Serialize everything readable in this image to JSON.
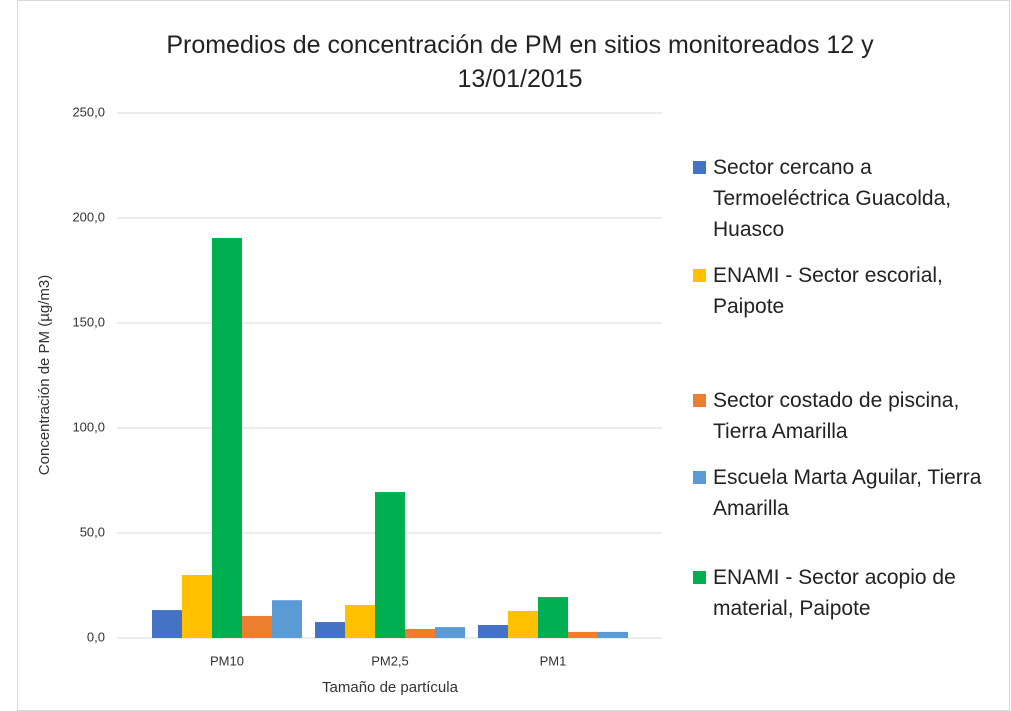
{
  "chart_data": {
    "type": "bar",
    "title": "Promedios de concentración de PM en sitios monitoreados 12 y 13/01/2015",
    "x_label": "Tamaño de partícula",
    "y_label": "Concentración de PM (µg/m3)",
    "categories": [
      "PM10",
      "PM2,5",
      "PM1"
    ],
    "series": [
      {
        "name": "Sector cercano a Termoeléctrica Guacolda, Huasco",
        "color": "#4472c4",
        "values": [
          13.3,
          7.6,
          6.2
        ]
      },
      {
        "name": "ENAMI - Sector escorial, Paipote",
        "color": "#ffc000",
        "values": [
          30.0,
          15.7,
          12.9
        ]
      },
      {
        "name": "ENAMI - Sector acopio de material, Paipote",
        "color": "#00b050",
        "values": [
          190.5,
          69.5,
          19.5
        ]
      },
      {
        "name": "Sector costado de piscina, Tierra Amarilla",
        "color": "#ed7d31",
        "values": [
          10.5,
          4.3,
          2.9
        ]
      },
      {
        "name": "Escuela Marta Aguilar, Tierra Amarilla",
        "color": "#5b9bd5",
        "values": [
          18.0,
          5.2,
          2.9
        ]
      }
    ],
    "ylim": [
      0,
      250
    ],
    "yticks": [
      {
        "value": 0,
        "label": "0,0"
      },
      {
        "value": 50,
        "label": "50,0"
      },
      {
        "value": 100,
        "label": "100,0"
      },
      {
        "value": 150,
        "label": "150,0"
      },
      {
        "value": 200,
        "label": "200,0"
      },
      {
        "value": 250,
        "label": "250,0"
      }
    ],
    "grid": true,
    "legend": "right"
  }
}
